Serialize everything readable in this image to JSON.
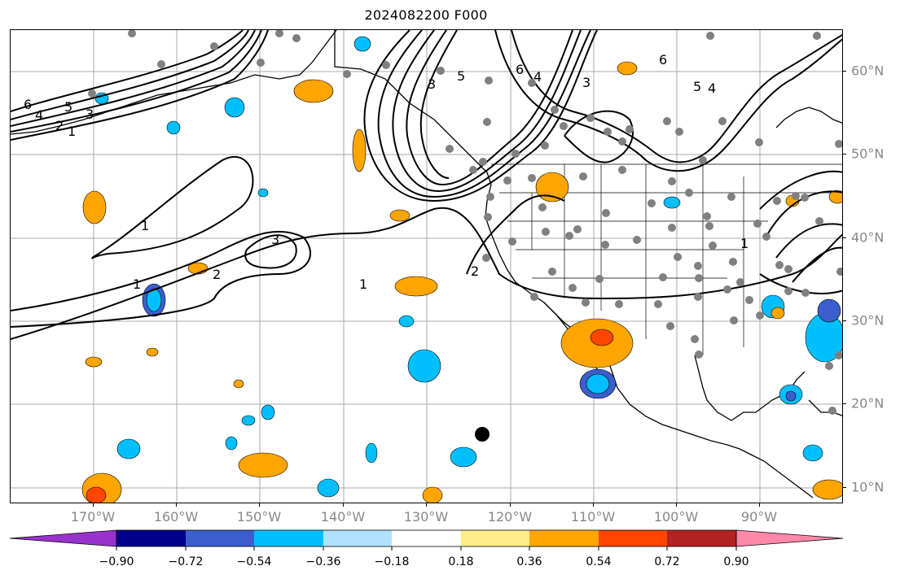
{
  "title": "2024082200 F000",
  "lat_labels": [
    "60°N",
    "50°N",
    "40°N",
    "30°N",
    "20°N",
    "10°N"
  ],
  "lon_labels": [
    "170°W",
    "160°W",
    "150°W",
    "140°W",
    "130°W",
    "120°W",
    "110°W",
    "100°W",
    "90°W"
  ],
  "contour_labels": [
    "6",
    "5",
    "4",
    "3",
    "2",
    "1",
    "1",
    "1",
    "1",
    "2",
    "3",
    "2",
    "3",
    "5",
    "6",
    "4",
    "3",
    "6",
    "5",
    "4",
    "1"
  ],
  "colorbar": {
    "tick_labels": [
      "−0.90",
      "−0.72",
      "−0.54",
      "−0.36",
      "−0.18",
      "0.18",
      "0.36",
      "0.54",
      "0.72",
      "0.90"
    ],
    "colors": [
      "#9932cc",
      "#00008b",
      "#3a5fcd",
      "#00bfff",
      "#b0e2ff",
      "#ffffff",
      "#ffec8b",
      "#ffa500",
      "#ff4500",
      "#b22222",
      "#ff88aa"
    ]
  }
}
